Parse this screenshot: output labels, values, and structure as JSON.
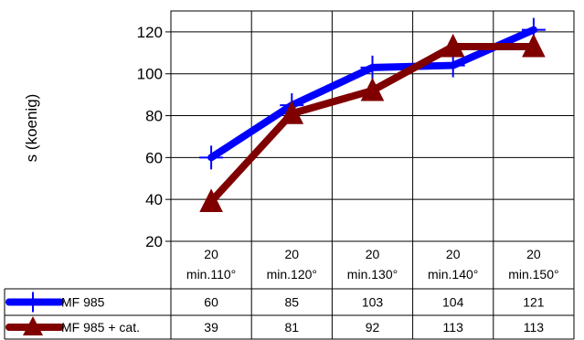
{
  "chart_data": {
    "type": "line",
    "ylabel": "s (koenig)",
    "ylim": [
      20,
      130
    ],
    "yticks": [
      20,
      40,
      60,
      80,
      100,
      120
    ],
    "grid": true,
    "legend_placement": "data-table",
    "categories": [
      [
        "20",
        "min.110°"
      ],
      [
        "20",
        "min.120°"
      ],
      [
        "20",
        "min.130°"
      ],
      [
        "20",
        "min.140°"
      ],
      [
        "20",
        "min.150°"
      ]
    ],
    "series": [
      {
        "name": "MF 985",
        "values": [
          60,
          85,
          103,
          104,
          121
        ],
        "color": "#0000ff",
        "marker": "cross"
      },
      {
        "name": "MF 985 + cat.",
        "values": [
          39,
          81,
          92,
          113,
          113
        ],
        "color": "#800000",
        "marker": "triangle"
      }
    ]
  }
}
